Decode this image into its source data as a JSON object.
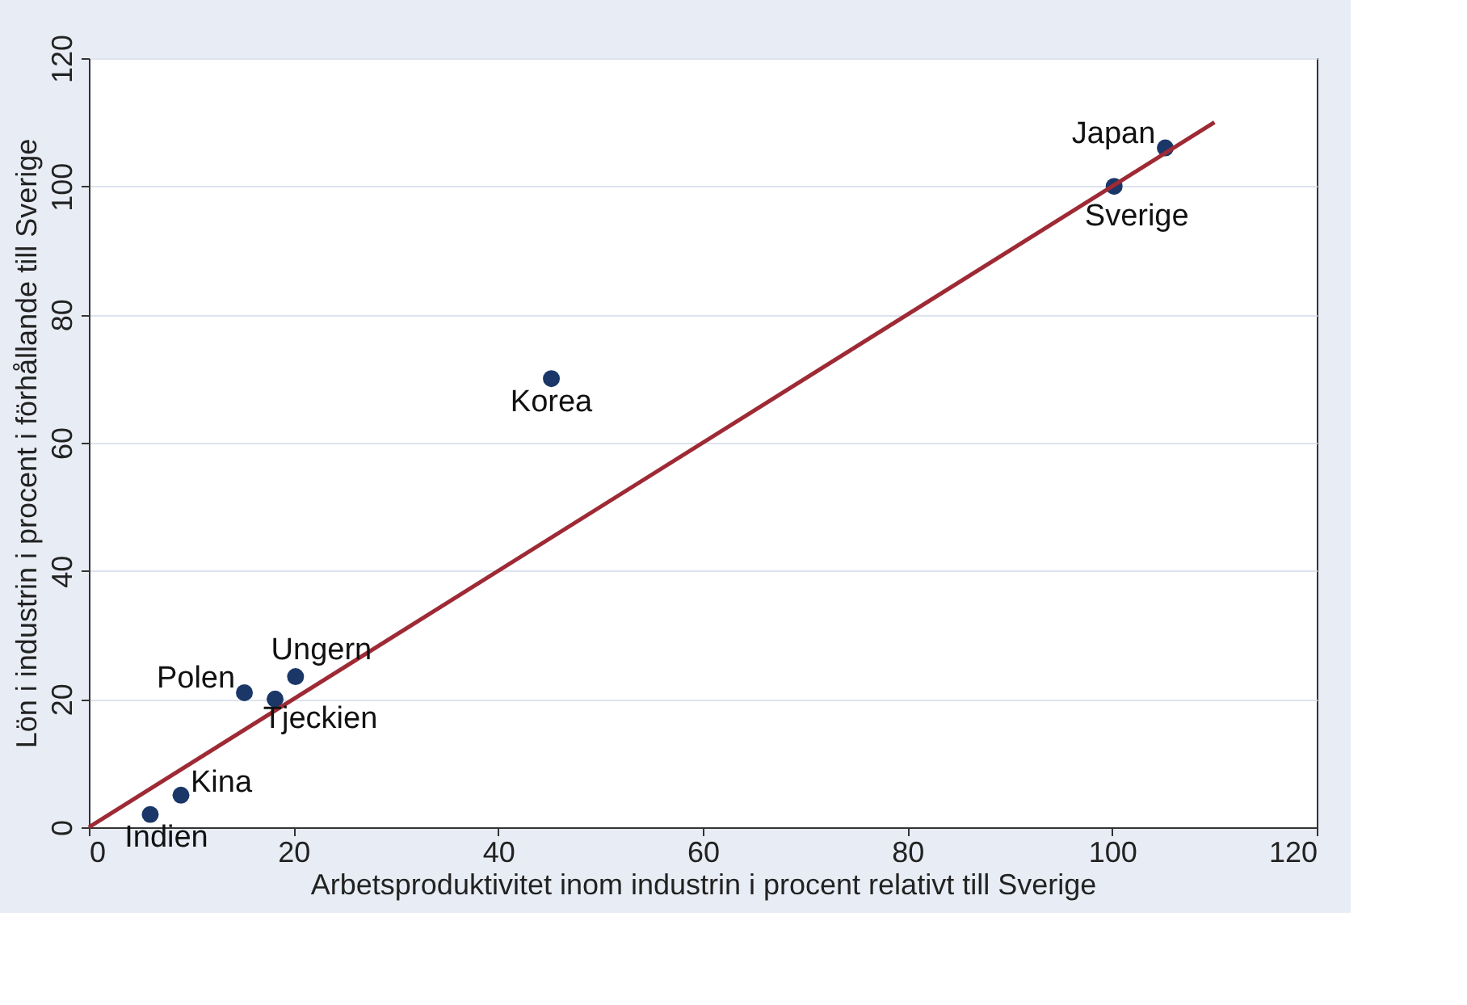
{
  "chart_data": {
    "type": "scatter",
    "xlabel": "Arbetsproduktivitet inom industrin i procent relativt till Sverige",
    "ylabel": "Lön i industrin i procent i förhållande till Sverige",
    "xlim": [
      0,
      120
    ],
    "ylim": [
      0,
      120
    ],
    "xticks": [
      0,
      20,
      40,
      60,
      80,
      100,
      120
    ],
    "yticks": [
      0,
      20,
      40,
      60,
      80,
      100,
      120
    ],
    "grid": "y",
    "series": [
      {
        "marker": "circle",
        "color": "#1a3768",
        "x": [
          6,
          9,
          15.2,
          18.2,
          20.2,
          45.2,
          100.2,
          105.2
        ],
        "values": [
          2,
          5,
          21,
          20,
          23.5,
          70,
          100,
          106
        ]
      },
      {
        "type": "line",
        "marker": "none",
        "color": "#9e2a35",
        "x": [
          0,
          110
        ],
        "values": [
          0,
          110
        ]
      }
    ],
    "annotations": [
      {
        "text": "Indien",
        "x": 6,
        "y": 2
      },
      {
        "text": "Kina",
        "x": 9,
        "y": 5
      },
      {
        "text": "Polen",
        "x": 15.2,
        "y": 21
      },
      {
        "text": "Tjeckien",
        "x": 18.2,
        "y": 20
      },
      {
        "text": "Ungern",
        "x": 20.2,
        "y": 23.5
      },
      {
        "text": "Korea",
        "x": 45.2,
        "y": 70
      },
      {
        "text": "Sverige",
        "x": 100.2,
        "y": 100
      },
      {
        "text": "Japan",
        "x": 105.2,
        "y": 106
      }
    ]
  }
}
